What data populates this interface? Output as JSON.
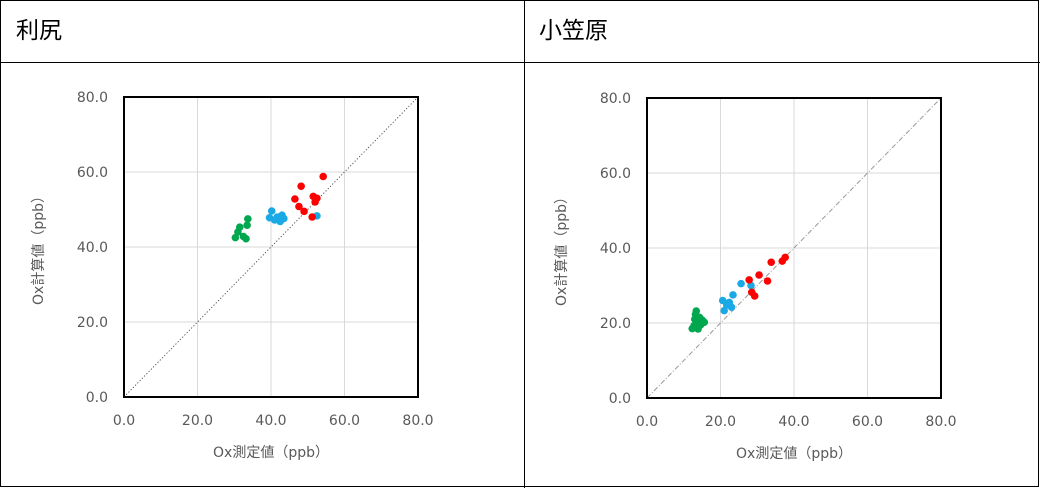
{
  "panels": [
    {
      "title": "利尻"
    },
    {
      "title": "小笠原"
    }
  ],
  "chart_data": [
    {
      "type": "scatter",
      "title": "",
      "xlabel": "Ox測定値（ppb）",
      "ylabel": "Ox計算値（ppb）",
      "xlim": [
        0,
        80
      ],
      "ylim": [
        0,
        80
      ],
      "xticks": [
        "0.0",
        "20.0",
        "40.0",
        "60.0",
        "80.0"
      ],
      "yticks": [
        "0.0",
        "20.0",
        "40.0",
        "60.0",
        "80.0"
      ],
      "grid": true,
      "reference_line": "1:1 dotted diagonal",
      "series": [
        {
          "color": "#00a74f",
          "points": [
            [
              30.3,
              42.5
            ],
            [
              31.0,
              44.0
            ],
            [
              31.5,
              45.3
            ],
            [
              32.5,
              42.8
            ],
            [
              33.2,
              42.2
            ],
            [
              33.5,
              45.8
            ],
            [
              33.7,
              47.5
            ]
          ]
        },
        {
          "color": "#1ba9e6",
          "points": [
            [
              39.6,
              47.8
            ],
            [
              40.2,
              49.6
            ],
            [
              41.0,
              47.2
            ],
            [
              41.7,
              48.0
            ],
            [
              42.5,
              46.8
            ],
            [
              43.0,
              48.5
            ],
            [
              43.5,
              47.6
            ],
            [
              52.5,
              48.3
            ]
          ]
        },
        {
          "color": "#ff0000",
          "points": [
            [
              46.5,
              52.8
            ],
            [
              47.6,
              50.8
            ],
            [
              48.2,
              56.2
            ],
            [
              49.0,
              49.5
            ],
            [
              51.2,
              48.0
            ],
            [
              51.5,
              53.5
            ],
            [
              52.0,
              52.0
            ],
            [
              52.5,
              53.0
            ],
            [
              54.2,
              58.8
            ]
          ]
        }
      ]
    },
    {
      "type": "scatter",
      "title": "",
      "xlabel": "Ox測定値（ppb）",
      "ylabel": "Ox計算値（ppb）",
      "xlim": [
        0,
        80
      ],
      "ylim": [
        0,
        80
      ],
      "xticks": [
        "0.0",
        "20.0",
        "40.0",
        "60.0",
        "80.0"
      ],
      "yticks": [
        "0.0",
        "20.0",
        "40.0",
        "60.0",
        "80.0"
      ],
      "grid": true,
      "reference_line": "1:1 dotted diagonal",
      "series": [
        {
          "color": "#00a74f",
          "points": [
            [
              12.3,
              18.5
            ],
            [
              12.8,
              19.3
            ],
            [
              13.0,
              21.0
            ],
            [
              13.2,
              22.3
            ],
            [
              13.4,
              23.2
            ],
            [
              13.6,
              20.0
            ],
            [
              13.9,
              18.4
            ],
            [
              14.3,
              21.5
            ],
            [
              14.6,
              19.5
            ],
            [
              15.0,
              20.8
            ],
            [
              15.6,
              20.2
            ]
          ]
        },
        {
          "color": "#1ba9e6",
          "points": [
            [
              20.6,
              26.0
            ],
            [
              21.0,
              23.3
            ],
            [
              21.7,
              24.8
            ],
            [
              22.4,
              25.5
            ],
            [
              23.0,
              24.2
            ],
            [
              23.4,
              27.5
            ],
            [
              25.6,
              30.5
            ],
            [
              28.3,
              30.0
            ]
          ]
        },
        {
          "color": "#ff0000",
          "points": [
            [
              27.8,
              31.5
            ],
            [
              28.5,
              28.2
            ],
            [
              29.3,
              27.2
            ],
            [
              30.5,
              32.8
            ],
            [
              32.8,
              31.2
            ],
            [
              33.8,
              36.2
            ],
            [
              36.8,
              36.5
            ],
            [
              37.6,
              37.5
            ]
          ]
        }
      ]
    }
  ]
}
